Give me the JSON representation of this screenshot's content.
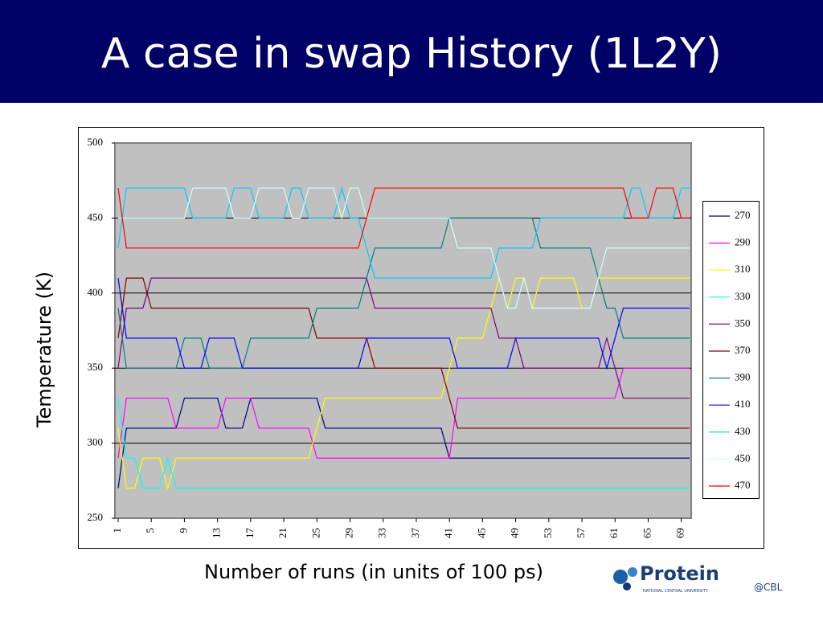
{
  "chart_data": {
    "type": "line",
    "title": "A case in swap History (1L2Y)",
    "x_label": "Number of runs (in units of 100 ps)",
    "y_label": "Temperature (K)",
    "x": [
      1,
      2,
      3,
      4,
      5,
      6,
      7,
      8,
      9,
      10,
      11,
      12,
      13,
      14,
      15,
      16,
      17,
      18,
      19,
      20,
      21,
      22,
      23,
      24,
      25,
      26,
      27,
      28,
      29,
      30,
      31,
      32,
      33,
      34,
      35,
      36,
      37,
      38,
      39,
      40,
      41,
      42,
      43,
      44,
      45,
      46,
      47,
      48,
      49,
      50,
      51,
      52,
      53,
      54,
      55,
      56,
      57,
      58,
      59,
      60,
      61,
      62,
      63,
      64,
      65,
      66,
      67,
      68,
      69,
      70
    ],
    "xlim": [
      1,
      70
    ],
    "xticks": [
      1,
      5,
      9,
      13,
      17,
      21,
      25,
      29,
      33,
      37,
      41,
      45,
      49,
      53,
      57,
      61,
      65,
      69
    ],
    "ylim": [
      250,
      500
    ],
    "yticks": [
      250,
      300,
      350,
      400,
      450,
      500
    ],
    "grid": true,
    "series": [
      {
        "name": "270",
        "color": "#000080",
        "values": [
          270,
          310,
          310,
          310,
          310,
          310,
          310,
          310,
          330,
          330,
          330,
          330,
          330,
          310,
          310,
          310,
          330,
          330,
          330,
          330,
          330,
          330,
          330,
          330,
          330,
          310,
          310,
          310,
          310,
          310,
          310,
          310,
          310,
          310,
          310,
          310,
          310,
          310,
          310,
          310,
          290,
          290,
          290,
          290,
          290,
          290,
          290,
          290,
          290,
          290,
          290,
          290,
          290,
          290,
          290,
          290,
          290,
          290,
          290,
          290,
          290,
          290,
          290,
          290,
          290,
          290,
          290,
          290,
          290,
          290
        ]
      },
      {
        "name": "290",
        "color": "#ff00ff",
        "values": [
          290,
          330,
          330,
          330,
          330,
          330,
          330,
          310,
          310,
          310,
          310,
          310,
          310,
          330,
          330,
          330,
          330,
          310,
          310,
          310,
          310,
          310,
          310,
          310,
          290,
          290,
          290,
          290,
          290,
          290,
          290,
          290,
          290,
          290,
          290,
          290,
          290,
          290,
          290,
          290,
          290,
          330,
          330,
          330,
          330,
          330,
          330,
          330,
          330,
          330,
          330,
          330,
          330,
          330,
          330,
          330,
          330,
          330,
          330,
          330,
          330,
          350,
          350,
          350,
          350,
          350,
          350,
          350,
          350,
          350
        ]
      },
      {
        "name": "310",
        "color": "#ffff00",
        "values": [
          310,
          270,
          270,
          290,
          290,
          290,
          270,
          290,
          290,
          290,
          290,
          290,
          290,
          290,
          290,
          290,
          290,
          290,
          290,
          290,
          290,
          290,
          290,
          290,
          310,
          330,
          330,
          330,
          330,
          330,
          330,
          330,
          330,
          330,
          330,
          330,
          330,
          330,
          330,
          330,
          350,
          370,
          370,
          370,
          370,
          390,
          410,
          390,
          410,
          410,
          390,
          410,
          410,
          410,
          410,
          410,
          390,
          390,
          410,
          410,
          410,
          410,
          410,
          410,
          410,
          410,
          410,
          410,
          410,
          410
        ]
      },
      {
        "name": "330",
        "color": "#00ffff",
        "values": [
          330,
          290,
          290,
          270,
          270,
          270,
          290,
          270,
          270,
          270,
          270,
          270,
          270,
          270,
          270,
          270,
          270,
          270,
          270,
          270,
          270,
          270,
          270,
          270,
          270,
          270,
          270,
          270,
          270,
          270,
          270,
          270,
          270,
          270,
          270,
          270,
          270,
          270,
          270,
          270,
          270,
          270,
          270,
          270,
          270,
          270,
          270,
          270,
          270,
          270,
          270,
          270,
          270,
          270,
          270,
          270,
          270,
          270,
          270,
          270,
          270,
          270,
          270,
          270,
          270,
          270,
          270,
          270,
          270,
          270
        ]
      },
      {
        "name": "350",
        "color": "#800080",
        "values": [
          350,
          390,
          390,
          390,
          410,
          410,
          410,
          410,
          410,
          410,
          410,
          410,
          410,
          410,
          410,
          410,
          410,
          410,
          410,
          410,
          410,
          410,
          410,
          410,
          410,
          410,
          410,
          410,
          410,
          410,
          410,
          390,
          390,
          390,
          390,
          390,
          390,
          390,
          390,
          390,
          390,
          390,
          390,
          390,
          390,
          390,
          370,
          370,
          370,
          350,
          350,
          350,
          350,
          350,
          350,
          350,
          350,
          350,
          350,
          370,
          350,
          330,
          330,
          330,
          330,
          330,
          330,
          330,
          330,
          330
        ]
      },
      {
        "name": "370",
        "color": "#800000",
        "values": [
          370,
          410,
          410,
          410,
          390,
          390,
          390,
          390,
          390,
          390,
          390,
          390,
          390,
          390,
          390,
          390,
          390,
          390,
          390,
          390,
          390,
          390,
          390,
          390,
          370,
          370,
          370,
          370,
          370,
          370,
          370,
          350,
          350,
          350,
          350,
          350,
          350,
          350,
          350,
          350,
          330,
          310,
          310,
          310,
          310,
          310,
          310,
          310,
          310,
          310,
          310,
          310,
          310,
          310,
          310,
          310,
          310,
          310,
          310,
          310,
          310,
          310,
          310,
          310,
          310,
          310,
          310,
          310,
          310,
          310
        ]
      },
      {
        "name": "390",
        "color": "#008080",
        "values": [
          390,
          350,
          350,
          350,
          350,
          350,
          350,
          350,
          370,
          370,
          370,
          350,
          350,
          350,
          350,
          350,
          370,
          370,
          370,
          370,
          370,
          370,
          370,
          370,
          390,
          390,
          390,
          390,
          390,
          390,
          410,
          430,
          430,
          430,
          430,
          430,
          430,
          430,
          430,
          430,
          450,
          450,
          450,
          450,
          450,
          450,
          450,
          450,
          450,
          450,
          450,
          430,
          430,
          430,
          430,
          430,
          430,
          430,
          410,
          390,
          390,
          370,
          370,
          370,
          370,
          370,
          370,
          370,
          370,
          370
        ]
      },
      {
        "name": "410",
        "color": "#0000ff",
        "values": [
          410,
          370,
          370,
          370,
          370,
          370,
          370,
          370,
          350,
          350,
          350,
          370,
          370,
          370,
          370,
          350,
          350,
          350,
          350,
          350,
          350,
          350,
          350,
          350,
          350,
          350,
          350,
          350,
          350,
          350,
          370,
          370,
          370,
          370,
          370,
          370,
          370,
          370,
          370,
          370,
          370,
          350,
          350,
          350,
          350,
          350,
          350,
          350,
          370,
          370,
          370,
          370,
          370,
          370,
          370,
          370,
          370,
          370,
          370,
          350,
          370,
          390,
          390,
          390,
          390,
          390,
          390,
          390,
          390,
          390
        ]
      },
      {
        "name": "430",
        "color": "#00ccff",
        "values": [
          430,
          470,
          470,
          470,
          470,
          470,
          470,
          470,
          470,
          450,
          450,
          450,
          450,
          450,
          470,
          470,
          470,
          450,
          450,
          450,
          450,
          470,
          470,
          450,
          450,
          450,
          450,
          470,
          450,
          450,
          430,
          410,
          410,
          410,
          410,
          410,
          410,
          410,
          410,
          410,
          410,
          410,
          410,
          410,
          410,
          410,
          430,
          430,
          430,
          430,
          430,
          450,
          450,
          450,
          450,
          450,
          450,
          450,
          450,
          450,
          450,
          450,
          470,
          470,
          450,
          450,
          450,
          450,
          470,
          470
        ]
      },
      {
        "name": "450",
        "color": "#ccffff",
        "values": [
          450,
          450,
          450,
          450,
          450,
          450,
          450,
          450,
          450,
          470,
          470,
          470,
          470,
          470,
          450,
          450,
          450,
          470,
          470,
          470,
          470,
          450,
          450,
          470,
          470,
          470,
          470,
          450,
          470,
          470,
          450,
          450,
          450,
          450,
          450,
          450,
          450,
          450,
          450,
          450,
          450,
          430,
          430,
          430,
          430,
          430,
          410,
          390,
          390,
          410,
          390,
          390,
          390,
          390,
          390,
          390,
          390,
          390,
          410,
          430,
          430,
          430,
          430,
          430,
          430,
          430,
          430,
          430,
          430,
          430
        ]
      },
      {
        "name": "470",
        "color": "#ff0000",
        "values": [
          470,
          430,
          430,
          430,
          430,
          430,
          430,
          430,
          430,
          430,
          430,
          430,
          430,
          430,
          430,
          430,
          430,
          430,
          430,
          430,
          430,
          430,
          430,
          430,
          430,
          430,
          430,
          430,
          430,
          430,
          450,
          470,
          470,
          470,
          470,
          470,
          470,
          470,
          470,
          470,
          470,
          470,
          470,
          470,
          470,
          470,
          470,
          470,
          470,
          470,
          470,
          470,
          470,
          470,
          470,
          470,
          470,
          470,
          470,
          470,
          470,
          470,
          450,
          450,
          450,
          470,
          470,
          470,
          450,
          450
        ]
      }
    ]
  },
  "logo": {
    "name": "Protein",
    "suffix": "@CBL",
    "subtitle": "NATIONAL CENTRAL UNIVERSITY"
  }
}
